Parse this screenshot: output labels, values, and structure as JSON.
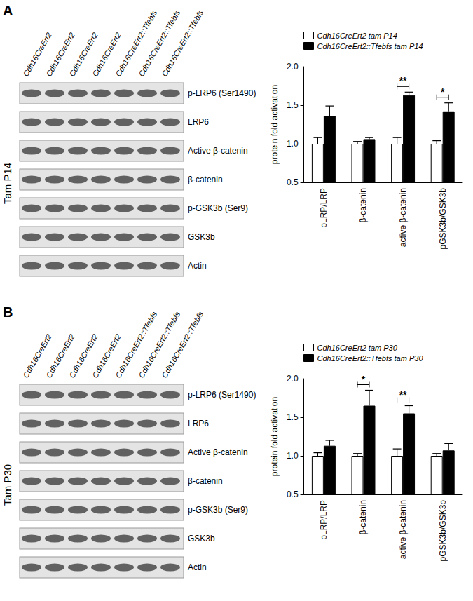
{
  "panels": [
    {
      "label": "A",
      "side_label": "Tam P14",
      "lanes": [
        "Cdh16CreErt2",
        "Cdh16CreErt2",
        "Cdh16CreErt2",
        "Cdh16CreErt2",
        "Cdh16CreErt2::Tfebfs",
        "Cdh16CreErt2::Tfebfs",
        "Cdh16CreErt2::Tfebfs"
      ],
      "rows": [
        "p-LRP6 (Ser1490)",
        "LRP6",
        "Active β-catenin",
        "β-catenin",
        "p-GSK3b (Ser9)",
        "GSK3b",
        "Actin"
      ]
    },
    {
      "label": "B",
      "side_label": "Tam P30",
      "lanes": [
        "Cdh16CreErt2",
        "Cdh16CreErt2",
        "Cdh16CreErt2",
        "Cdh16CreErt2",
        "Cdh16CreErt2::Tfebfs",
        "Cdh16CreErt2::Tfebfs",
        "Cdh16CreErt2::Tfebfs"
      ],
      "rows": [
        "p-LRP6 (Ser1490)",
        "LRP6",
        "Active β-catenin",
        "β-catenin",
        "p-GSK3b (Ser9)",
        "GSK3b",
        "Actin"
      ]
    }
  ],
  "chart_data": [
    {
      "type": "bar",
      "categories": [
        "pLRP/LRP",
        "β-catenin",
        "active β-catenin",
        "pGSK3b/GSK3b"
      ],
      "series": [
        {
          "name": "Cdh16CreErt2 tam P14",
          "color": "#ffffff",
          "values": [
            1.0,
            1.0,
            1.0,
            1.0
          ],
          "errors": [
            0.08,
            0.03,
            0.08,
            0.04
          ]
        },
        {
          "name": "Cdh16CreErt2::Tfebfs tam P14",
          "color": "#000000",
          "values": [
            1.36,
            1.06,
            1.63,
            1.42
          ],
          "errors": [
            0.13,
            0.02,
            0.04,
            0.11
          ]
        }
      ],
      "ylabel": "protein fold activation",
      "ylim": [
        0.5,
        2.0
      ],
      "yticks": [
        0.5,
        {
          "value": 1.0,
          "label": "1.0"
        },
        1.5,
        {
          "value": 2.0,
          "label": "2.0"
        }
      ],
      "legend": "top-left",
      "grid": false,
      "significance": [
        {
          "category": "active β-catenin",
          "label": "**"
        },
        {
          "category": "pGSK3b/GSK3b",
          "label": "*"
        }
      ]
    },
    {
      "type": "bar",
      "categories": [
        "pLRP/LRP",
        "β-catenin",
        "active β-catenin",
        "pGSK3b/GSK3b"
      ],
      "series": [
        {
          "name": "Cdh16CreErt2 tam P30",
          "color": "#ffffff",
          "values": [
            1.0,
            1.0,
            1.0,
            1.0
          ],
          "errors": [
            0.04,
            0.03,
            0.09,
            0.03
          ]
        },
        {
          "name": "Cdh16CreErt2::Tfebfs tam P30",
          "color": "#000000",
          "values": [
            1.13,
            1.65,
            1.55,
            1.07
          ],
          "errors": [
            0.07,
            0.2,
            0.1,
            0.09
          ]
        }
      ],
      "ylabel": "protein fold activation",
      "ylim": [
        0.5,
        2.0
      ],
      "yticks": [
        0.5,
        {
          "value": 1.0,
          "label": "1.0"
        },
        1.5,
        {
          "value": 2.0,
          "label": "2.0"
        }
      ],
      "legend": "top-left",
      "grid": false,
      "significance": [
        {
          "category": "β-catenin",
          "label": "*"
        },
        {
          "category": "active β-catenin",
          "label": "**"
        }
      ]
    }
  ]
}
